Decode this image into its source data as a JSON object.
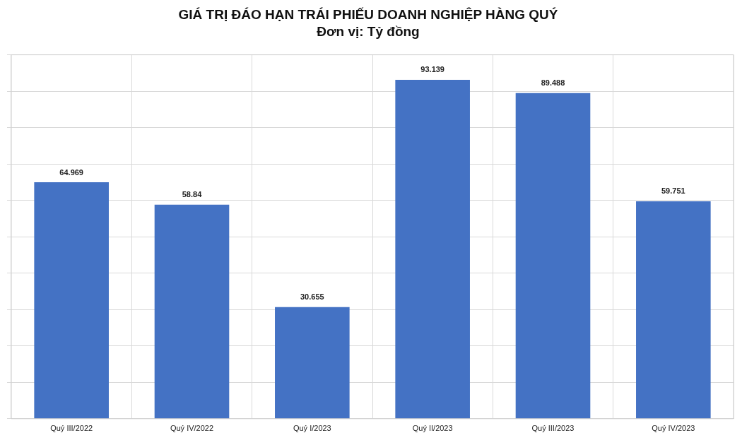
{
  "chart_data": {
    "type": "bar",
    "title": "GIÁ TRỊ ĐÁO HẠN TRÁI PHIẾU DOANH NGHIỆP HÀNG QUÝ",
    "subtitle": "Đơn vị: Tỷ đồng",
    "categories": [
      "Quý III/2022",
      "Quý IV/2022",
      "Quý I/2023",
      "Quý II/2023",
      "Quý III/2023",
      "Quý IV/2023"
    ],
    "values": [
      64.969,
      58.84,
      30.655,
      93.139,
      89.488,
      59.751
    ],
    "color": "#4472c4",
    "data_labels": true,
    "grid": true,
    "tick_labels": "x",
    "legend": false,
    "ylim": [
      0,
      100
    ],
    "yticks": [
      {
        "value": 0,
        "label": null
      },
      {
        "value": 10,
        "label": null
      },
      {
        "value": 20,
        "label": null
      },
      {
        "value": 30,
        "label": null
      },
      {
        "value": 40,
        "label": null
      },
      {
        "value": 50,
        "label": null
      },
      {
        "value": 60,
        "label": null
      },
      {
        "value": 70,
        "label": null
      },
      {
        "value": 80,
        "label": null
      },
      {
        "value": 90,
        "label": null
      },
      {
        "value": 100,
        "label": null
      }
    ]
  }
}
